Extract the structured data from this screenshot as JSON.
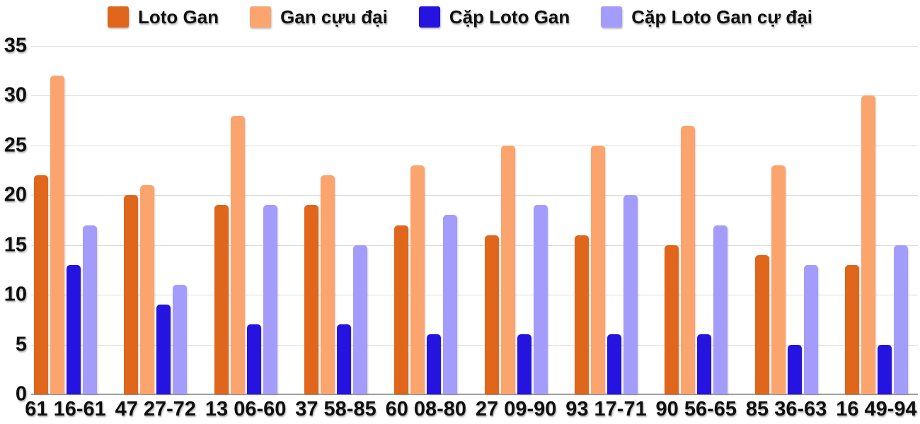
{
  "chart_data": {
    "type": "bar",
    "title": "",
    "categories": [
      "61 16-61",
      "47 27-72",
      "13 06-60",
      "37 58-85",
      "60 08-80",
      "27 09-90",
      "93 17-71",
      "90 56-65",
      "85 36-63",
      "16 49-94"
    ],
    "series": [
      {
        "name": "Loto Gan",
        "color": "#DF661A",
        "values": [
          22,
          20,
          19,
          19,
          17,
          16,
          16,
          15,
          14,
          13
        ]
      },
      {
        "name": "Gan cựu đại",
        "color": "#FCA46D",
        "values": [
          32,
          21,
          28,
          22,
          23,
          25,
          25,
          27,
          23,
          30
        ]
      },
      {
        "name": "Cặp Loto Gan",
        "color": "#2513E0",
        "values": [
          13,
          9,
          7,
          7,
          6,
          6,
          6,
          6,
          5,
          5
        ]
      },
      {
        "name": "Cặp Loto Gan cự đại",
        "color": "#A49CFB",
        "values": [
          17,
          11,
          19,
          15,
          18,
          19,
          20,
          17,
          13,
          15
        ]
      }
    ],
    "yticks": [
      0,
      5,
      10,
      15,
      20,
      25,
      30,
      35
    ],
    "ylim": [
      0,
      35
    ],
    "xlabel": "",
    "ylabel": "",
    "grid": true,
    "legend_position": "top"
  },
  "colors": {
    "background": "#FFFFFF",
    "gridline": "#DCDCDC",
    "axis_line": "#9E9E9E",
    "text": "#111111"
  }
}
